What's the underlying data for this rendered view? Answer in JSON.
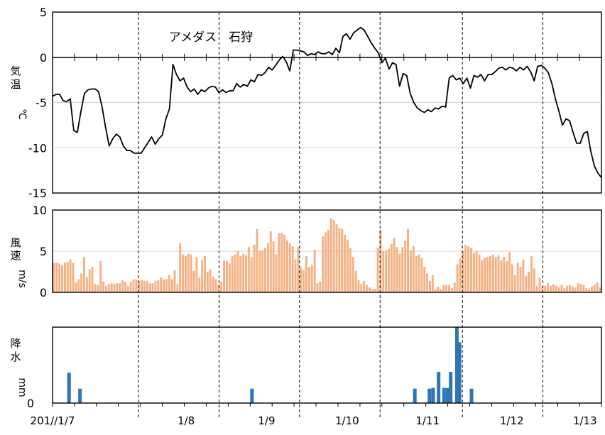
{
  "chart_data": [
    {
      "type": "line",
      "title": "アメダス　石狩",
      "ylabel_chars": [
        "気",
        "温"
      ],
      "yunit": "℃",
      "ylim": [
        -15,
        5
      ],
      "yticks": [
        5,
        0,
        -5,
        -10,
        -15
      ],
      "grid": true,
      "x_range_hours": [
        0,
        150
      ],
      "series": [
        {
          "values": [
            -4.3,
            -4.1,
            -4.1,
            -4.8,
            -4.9,
            -4.6,
            -8.1,
            -8.3,
            -6.0,
            -4.0,
            -3.6,
            -3.5,
            -3.5,
            -3.8,
            -5.5,
            -7.8,
            -9.8,
            -9.0,
            -8.5,
            -8.8,
            -9.8,
            -10.3,
            -10.3,
            -10.6,
            -10.6,
            -10.6,
            -10.0,
            -9.4,
            -8.8,
            -9.6,
            -9.0,
            -8.6,
            -6.8,
            -5.7,
            -0.8,
            -1.9,
            -2.6,
            -2.3,
            -3.3,
            -3.8,
            -3.5,
            -4.1,
            -3.6,
            -3.8,
            -3.4,
            -3.2,
            -3.3,
            -3.9,
            -3.6,
            -3.9,
            -3.7,
            -3.7,
            -2.9,
            -3.3,
            -3.0,
            -3.2,
            -2.5,
            -2.7,
            -1.9,
            -2.0,
            -1.7,
            -1.1,
            -1.4,
            -0.9,
            -0.3,
            0.1,
            -0.5,
            -1.5,
            0.8,
            0.8,
            0.7,
            0.6,
            0.2,
            0.4,
            0.3,
            0.6,
            0.4,
            0.4,
            0.6,
            0.3,
            1.0,
            0.5,
            2.3,
            2.6,
            2.0,
            2.7,
            3.0,
            3.3,
            3.0,
            2.3,
            1.6,
            1.0,
            0.5,
            -0.6,
            -0.1,
            -1.3,
            -0.6,
            -0.8,
            -3.2,
            -1.8,
            -2.0,
            -4.0,
            -5.0,
            -5.6,
            -5.9,
            -6.1,
            -5.8,
            -6.0,
            -5.6,
            -5.7,
            -5.4,
            -5.5,
            -2.3,
            -2.0,
            -2.5,
            -2.3,
            -2.9,
            -2.3,
            -3.4,
            -2.0,
            -2.2,
            -1.9,
            -2.6,
            -1.9,
            -1.9,
            -1.6,
            -1.2,
            -1.1,
            -1.4,
            -1.1,
            -1.2,
            -1.5,
            -1.1,
            -1.4,
            -1.0,
            -1.6,
            -2.6,
            -1.0,
            -0.9,
            -1.2,
            -1.7,
            -2.9,
            -4.6,
            -6.0,
            -7.5,
            -6.8,
            -7.0,
            -8.3,
            -9.5,
            -9.5,
            -8.4,
            -8.2,
            -10.4,
            -12.0,
            -12.8,
            -13.3
          ]
        }
      ]
    },
    {
      "type": "bar",
      "ylabel_chars": [
        "風",
        "速"
      ],
      "yunit": "m/s",
      "ylim": [
        0,
        10
      ],
      "yticks": [
        10,
        5,
        0
      ],
      "color": "#f4b183",
      "values": [
        3.6,
        3.6,
        3.5,
        3.3,
        3.6,
        3.7,
        4.0,
        3.6,
        1.2,
        1.6,
        2.3,
        4.3,
        1.9,
        2.8,
        3.1,
        1.0,
        0.9,
        3.8,
        1.3,
        0.8,
        1.0,
        1.1,
        1.0,
        1.1,
        1.1,
        1.5,
        1.3,
        0.8,
        1.3,
        1.6,
        1.6,
        1.4,
        1.5,
        1.4,
        1.4,
        1.1,
        1.1,
        1.4,
        1.5,
        1.8,
        1.6,
        1.6,
        2.1,
        1.6,
        2.7,
        1.0,
        6.0,
        4.6,
        4.4,
        4.7,
        4.6,
        2.6,
        4.3,
        1.8,
        3.9,
        4.4,
        2.5,
        2.8,
        1.9,
        1.6,
        1.0,
        1.3,
        3.9,
        3.8,
        3.5,
        4.4,
        4.6,
        5.0,
        4.4,
        4.7,
        4.5,
        5.5,
        4.3,
        5.8,
        7.7,
        5.0,
        5.1,
        5.4,
        6.0,
        7.4,
        6.2,
        4.6,
        7.2,
        7.2,
        7.0,
        6.3,
        6.0,
        5.6,
        4.0,
        5.5,
        3.0,
        2.7,
        4.4,
        3.1,
        3.3,
        5.2,
        1.1,
        1.3,
        6.8,
        7.3,
        7.6,
        9.0,
        8.8,
        8.3,
        7.8,
        7.7,
        7.0,
        6.4,
        5.4,
        4.3,
        2.6,
        1.5,
        1.0,
        1.4,
        0.9,
        0.6,
        0.4,
        0.4,
        5.4,
        7.6,
        5.0,
        5.1,
        5.3,
        5.9,
        6.6,
        5.5,
        4.7,
        5.5,
        6.3,
        7.7,
        5.1,
        5.6,
        4.4,
        4.6,
        4.2,
        3.1,
        2.3,
        1.4,
        2.1,
        0.4,
        0.7,
        0.4,
        0.9,
        0.9,
        0.9,
        0.5,
        1.2,
        3.4,
        4.1,
        5.0,
        5.8,
        5.6,
        5.4,
        4.8,
        5.0,
        4.6,
        3.9,
        4.2,
        4.3,
        4.4,
        4.6,
        4.3,
        4.5,
        3.9,
        4.3,
        3.8,
        4.9,
        3.4,
        2.1,
        3.6,
        3.1,
        4.0,
        2.0,
        2.5,
        4.4,
        2.9,
        0.8,
        1.8,
        0.7,
        0.8,
        1.1,
        0.8,
        1.0,
        0.8,
        0.6,
        0.9,
        0.5,
        0.8,
        0.9,
        0.7,
        0.6,
        1.1,
        1.0,
        0.9,
        0.5,
        0.4,
        0.7,
        0.9,
        1.2,
        0.6
      ]
    },
    {
      "type": "bar",
      "ylabel_chars": [
        "降",
        "水"
      ],
      "yunit": "mm",
      "yticks": [
        0
      ],
      "ylim": [
        0,
        10
      ],
      "color": "#2e75b6",
      "bars": [
        {
          "x": 4.5,
          "value": 4.0
        },
        {
          "x": 7.5,
          "value": 1.9
        },
        {
          "x": 54.5,
          "value": 1.9
        },
        {
          "x": 99.0,
          "value": 1.9
        },
        {
          "x": 103.0,
          "value": 1.9
        },
        {
          "x": 104.0,
          "value": 2.0
        },
        {
          "x": 105.5,
          "value": 4.1
        },
        {
          "x": 107.0,
          "value": 2.0
        },
        {
          "x": 108.0,
          "value": 2.0
        },
        {
          "x": 108.8,
          "value": 4.1
        },
        {
          "x": 110.5,
          "value": 10.0
        },
        {
          "x": 111.2,
          "value": 8.0
        },
        {
          "x": 114.5,
          "value": 1.9
        }
      ]
    }
  ],
  "x_axis": {
    "tick_labels": [
      {
        "label": "201//1/7",
        "hour": 0
      },
      {
        "label": "1/8",
        "hour": 36.5
      },
      {
        "label": "1/9",
        "hour": 58.5
      },
      {
        "label": "1/10",
        "hour": 80.5
      },
      {
        "label": "1/11",
        "hour": 102.5
      },
      {
        "label": "1/12",
        "hour": 125.5
      },
      {
        "label": "1/13",
        "hour": 145.5
      }
    ],
    "dashed_lines_hours": [
      23.5,
      45.5,
      67.5,
      89.5,
      112,
      134
    ]
  }
}
